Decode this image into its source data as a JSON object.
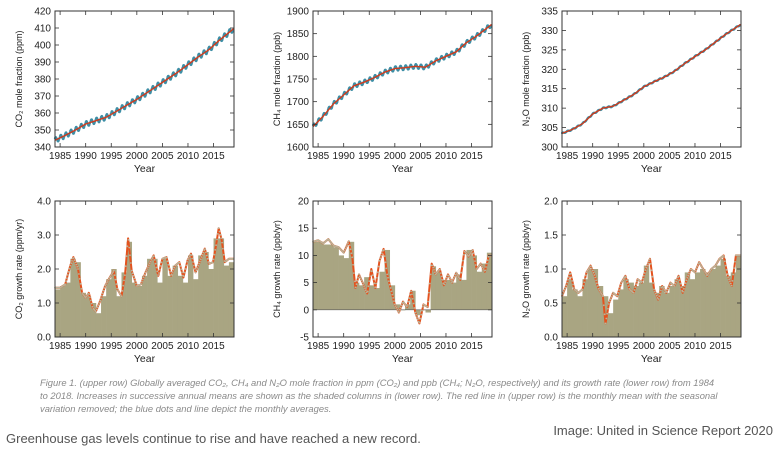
{
  "caption": "Figure 1. (upper row) Globally averaged CO₂, CH₄ and N₂O mole fraction in ppm (CO₂) and ppb (CH₄; N₂O, respectively) and its growth rate (lower row) from 1984 to 2018. Increases in successive annual means are shown as the shaded columns in (lower row). The red line in (upper row) is the monthly mean with the seasonal variation removed; the blue dots and line depict the monthly averages.",
  "footer_left": "Greenhouse gas levels continue to rise and have reached a new record.",
  "footer_right": "Image: United in Science Report 2020",
  "colors": {
    "red_line": "#d03a1c",
    "blue_dots": "#3e8fa6",
    "olive_fill": "#a9a582",
    "orange_line": "#e4521e",
    "frame": "#333333"
  },
  "chart_data": [
    {
      "type": "line",
      "xlabel": "Year",
      "ylabel": "CO₂ mole fraction (ppm)",
      "xlim": [
        1984,
        2019
      ],
      "ylim": [
        340,
        420
      ],
      "xticks": [
        "1985",
        "1990",
        "1995",
        "2000",
        "2005",
        "2010",
        "2015"
      ],
      "yticks": [
        "340",
        "350",
        "360",
        "370",
        "380",
        "390",
        "400",
        "410",
        "420"
      ],
      "seasonal_amplitude": 1.6,
      "x": [
        1984,
        1986,
        1988,
        1990,
        1992,
        1994,
        1996,
        1998,
        2000,
        2002,
        2004,
        2006,
        2008,
        2010,
        2012,
        2014,
        2016,
        2018.9
      ],
      "values": [
        344,
        346.8,
        350,
        353.5,
        355.5,
        357.5,
        361,
        364.5,
        368,
        372,
        376,
        380,
        384,
        388.5,
        393,
        397,
        402.5,
        409.5
      ]
    },
    {
      "type": "line",
      "xlabel": "Year",
      "ylabel": "CH₄ mole fraction (ppb)",
      "xlim": [
        1984,
        2019
      ],
      "ylim": [
        1600,
        1900
      ],
      "xticks": [
        "1985",
        "1990",
        "1995",
        "2000",
        "2005",
        "2010",
        "2015"
      ],
      "yticks": [
        "1600",
        "1650",
        "1700",
        "1750",
        "1800",
        "1850",
        "1900"
      ],
      "seasonal_amplitude": 5,
      "x": [
        1984,
        1986,
        1988,
        1990,
        1992,
        1994,
        1996,
        1998,
        2000,
        2002,
        2004,
        2006,
        2008,
        2010,
        2012,
        2014,
        2016,
        2018.9
      ],
      "values": [
        1645,
        1668,
        1695,
        1715,
        1735,
        1743,
        1753,
        1765,
        1773,
        1775,
        1778,
        1776,
        1790,
        1800,
        1810,
        1830,
        1845,
        1870
      ]
    },
    {
      "type": "line",
      "xlabel": "Year",
      "ylabel": "N₂O mole fraction (ppb)",
      "xlim": [
        1984,
        2019
      ],
      "ylim": [
        300,
        335
      ],
      "xticks": [
        "1985",
        "1990",
        "1995",
        "2000",
        "2005",
        "2010",
        "2015"
      ],
      "yticks": [
        "300",
        "305",
        "310",
        "315",
        "320",
        "325",
        "330",
        "335"
      ],
      "seasonal_amplitude": 0.15,
      "x": [
        1984,
        1986,
        1988,
        1990,
        1992,
        1994,
        1996,
        1998,
        2000,
        2002,
        2004,
        2006,
        2008,
        2010,
        2012,
        2014,
        2016,
        2018.9
      ],
      "values": [
        303.5,
        304.5,
        306,
        308.5,
        310,
        310.5,
        312,
        313.5,
        315.5,
        316.8,
        318,
        319.5,
        321.5,
        323.3,
        325,
        327,
        329,
        331.5
      ]
    },
    {
      "type": "area",
      "xlabel": "Year",
      "ylabel": "CO₂ growth rate (ppm/yr)",
      "xlim": [
        1984,
        2019
      ],
      "ylim": [
        0,
        4
      ],
      "xticks": [
        "1985",
        "1990",
        "1995",
        "2000",
        "2005",
        "2010",
        "2015"
      ],
      "yticks": [
        "0.0",
        "1.0",
        "2.0",
        "3.0",
        "4.0"
      ],
      "annual_x": [
        1984,
        1985,
        1986,
        1987,
        1988,
        1989,
        1990,
        1991,
        1992,
        1993,
        1994,
        1995,
        1996,
        1997,
        1998,
        1999,
        2000,
        2001,
        2002,
        2003,
        2004,
        2005,
        2006,
        2007,
        2008,
        2009,
        2010,
        2011,
        2012,
        2013,
        2014,
        2015,
        2016,
        2017,
        2018
      ],
      "annual_values": [
        1.4,
        1.5,
        1.6,
        2.3,
        2.2,
        1.3,
        1.2,
        1.0,
        0.7,
        1.2,
        1.7,
        2.0,
        1.2,
        1.9,
        2.8,
        1.6,
        1.5,
        1.8,
        2.3,
        2.3,
        1.6,
        2.3,
        1.8,
        2.1,
        1.8,
        1.6,
        2.4,
        1.7,
        2.4,
        2.5,
        2.0,
        2.9,
        2.9,
        2.1,
        2.2
      ],
      "x": [
        1984,
        1985,
        1986,
        1987,
        1987.6,
        1988.5,
        1989.3,
        1990,
        1990.6,
        1991.4,
        1992,
        1992.8,
        1993.8,
        1994.7,
        1995.5,
        1996.2,
        1997,
        1997.7,
        1998.3,
        1999,
        2000,
        2000.8,
        2001.7,
        2002.6,
        2003.3,
        2004.2,
        2005,
        2005.8,
        2006.7,
        2007.5,
        2008.3,
        2009.1,
        2009.9,
        2010.6,
        2011.5,
        2012.4,
        2013.3,
        2014.1,
        2014.9,
        2015.5,
        2016,
        2016.6,
        2017.2,
        2018,
        2018.9
      ],
      "values": [
        1.45,
        1.45,
        1.55,
        2.1,
        2.35,
        2.0,
        1.3,
        1.15,
        1.3,
        0.85,
        0.75,
        1.05,
        1.5,
        1.75,
        1.95,
        1.4,
        1.2,
        1.85,
        2.9,
        1.95,
        1.5,
        1.55,
        1.9,
        2.2,
        2.4,
        1.8,
        2.3,
        2.35,
        1.8,
        2.1,
        2.2,
        1.75,
        2.25,
        2.45,
        1.9,
        2.25,
        2.6,
        2.15,
        2.2,
        2.7,
        3.2,
        2.85,
        2.2,
        2.3,
        2.3
      ]
    },
    {
      "type": "area",
      "xlabel": "Year",
      "ylabel": "CH₄ growth rate (ppb/yr)",
      "xlim": [
        1984,
        2019
      ],
      "ylim": [
        -5,
        20
      ],
      "xticks": [
        "1985",
        "1990",
        "1995",
        "2000",
        "2005",
        "2010",
        "2015"
      ],
      "yticks": [
        "-5",
        "0",
        "5",
        "10",
        "15",
        "20"
      ],
      "annual_x": [
        1984,
        1985,
        1986,
        1987,
        1988,
        1989,
        1990,
        1991,
        1992,
        1993,
        1994,
        1995,
        1996,
        1997,
        1998,
        1999,
        2000,
        2001,
        2002,
        2003,
        2004,
        2005,
        2006,
        2007,
        2008,
        2009,
        2010,
        2011,
        2012,
        2013,
        2014,
        2015,
        2016,
        2017,
        2018
      ],
      "annual_values": [
        12.5,
        12.5,
        12.0,
        12.0,
        11.5,
        10.0,
        9.5,
        12.5,
        5.0,
        4.5,
        6.0,
        4.5,
        4.0,
        7.0,
        11.0,
        4.5,
        1.0,
        0,
        1.0,
        3.5,
        -1.0,
        0,
        -0.5,
        8.0,
        7.0,
        5.5,
        5.5,
        5.0,
        6.5,
        5.5,
        11.0,
        10.0,
        7.0,
        8.5,
        10.5
      ],
      "x": [
        1984,
        1985,
        1986,
        1987,
        1988,
        1989,
        1990,
        1991,
        1991.7,
        1992.3,
        1993,
        1993.8,
        1994.6,
        1995.4,
        1996.2,
        1997,
        1997.8,
        1998.5,
        1999.3,
        2000,
        2000.8,
        2001.6,
        2002.4,
        2003.2,
        2004,
        2004.8,
        2005.6,
        2006.4,
        2007.2,
        2008,
        2008.8,
        2009.6,
        2010.4,
        2011.2,
        2012,
        2012.8,
        2013.6,
        2014.4,
        2015.2,
        2016,
        2016.8,
        2017.6,
        2018.4,
        2018.9
      ],
      "values": [
        12.5,
        12.8,
        12.2,
        13.0,
        11.8,
        11.5,
        10.5,
        12.6,
        9.5,
        4.0,
        6.5,
        4.8,
        3.0,
        7.5,
        4.0,
        9.0,
        11.2,
        6.5,
        3.5,
        1.0,
        -0.5,
        1.5,
        0.5,
        3.5,
        -0.5,
        -2.5,
        1.0,
        0.5,
        8.5,
        6.5,
        7.5,
        4.5,
        6.5,
        5.0,
        6.8,
        5.5,
        10.8,
        9.8,
        11.0,
        7.5,
        8.5,
        7.0,
        10.0,
        10.0
      ]
    },
    {
      "type": "area",
      "xlabel": "Year",
      "ylabel": "N₂O growth rate (ppb/yr)",
      "xlim": [
        1984,
        2019
      ],
      "ylim": [
        0,
        2
      ],
      "xticks": [
        "1985",
        "1990",
        "1995",
        "2000",
        "2005",
        "2010",
        "2015"
      ],
      "yticks": [
        "0.0",
        "0.5",
        "1.0",
        "1.5",
        "2.0"
      ],
      "annual_x": [
        1984,
        1985,
        1986,
        1987,
        1988,
        1989,
        1990,
        1991,
        1992,
        1993,
        1994,
        1995,
        1996,
        1997,
        1998,
        1999,
        2000,
        2001,
        2002,
        2003,
        2004,
        2005,
        2006,
        2007,
        2008,
        2009,
        2010,
        2011,
        2012,
        2013,
        2014,
        2015,
        2016,
        2017,
        2018
      ],
      "annual_values": [
        0.6,
        0.85,
        0.7,
        0.6,
        0.85,
        1.0,
        1.0,
        0.75,
        0.6,
        0.35,
        0.55,
        0.7,
        0.85,
        0.8,
        0.75,
        0.8,
        1.05,
        0.8,
        0.65,
        0.75,
        0.65,
        0.75,
        0.85,
        0.75,
        0.95,
        0.85,
        0.95,
        1.0,
        0.95,
        1.0,
        1.05,
        1.15,
        0.9,
        0.95,
        1.2
      ],
      "x": [
        1984,
        1984.8,
        1985.6,
        1986.4,
        1987.2,
        1988,
        1988.8,
        1989.6,
        1990.4,
        1991.2,
        1992,
        1992.5,
        1993.2,
        1994,
        1994.8,
        1995.6,
        1996.4,
        1997.2,
        1998,
        1998.8,
        1999.6,
        2000.4,
        2001.2,
        2002,
        2002.8,
        2003.6,
        2004.4,
        2005.2,
        2006,
        2006.8,
        2007.6,
        2008.4,
        2009.2,
        2010,
        2010.8,
        2011.6,
        2012.4,
        2013.2,
        2014,
        2014.8,
        2015.6,
        2016.4,
        2017.2,
        2018,
        2018.9
      ],
      "values": [
        0.6,
        0.75,
        0.95,
        0.7,
        0.65,
        0.7,
        0.95,
        1.05,
        0.9,
        0.7,
        0.6,
        0.2,
        0.5,
        0.65,
        0.6,
        0.8,
        0.9,
        0.7,
        0.65,
        0.85,
        0.8,
        1.0,
        1.15,
        0.7,
        0.55,
        0.75,
        0.65,
        0.8,
        0.75,
        0.9,
        0.65,
        0.85,
        1.0,
        0.95,
        1.1,
        1.0,
        0.9,
        1.0,
        1.05,
        1.15,
        1.2,
        0.9,
        0.75,
        1.2,
        1.2
      ]
    }
  ]
}
